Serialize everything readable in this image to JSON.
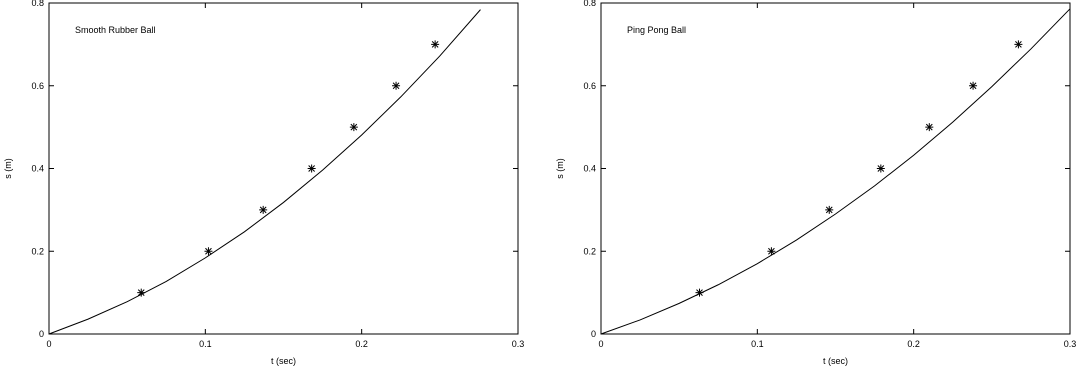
{
  "chart_data": [
    {
      "type": "scatter",
      "title": "Smooth Rubber Ball",
      "xlabel": "t (sec)",
      "ylabel": "s (m)",
      "xlim": [
        0,
        0.3
      ],
      "ylim": [
        0,
        0.8
      ],
      "xticks": [
        "0",
        "0.1",
        "0.2",
        "0.3"
      ],
      "yticks": [
        "0",
        "0.2",
        "0.4",
        "0.6",
        "0.8"
      ],
      "grid": false,
      "legend": "none",
      "points": {
        "x": [
          0.059,
          0.102,
          0.137,
          0.168,
          0.195,
          0.222,
          0.247
        ],
        "y": [
          0.1,
          0.2,
          0.3,
          0.4,
          0.5,
          0.6,
          0.7
        ]
      },
      "fit_curve": {
        "x": [
          0,
          0.025,
          0.05,
          0.075,
          0.1,
          0.125,
          0.15,
          0.175,
          0.2,
          0.225,
          0.25,
          0.276
        ],
        "y": [
          0,
          0.036,
          0.078,
          0.127,
          0.184,
          0.247,
          0.318,
          0.396,
          0.481,
          0.573,
          0.672,
          0.784
        ]
      }
    },
    {
      "type": "scatter",
      "title": "Ping Pong Ball",
      "xlabel": "t (sec)",
      "ylabel": "s (m)",
      "xlim": [
        0,
        0.3
      ],
      "ylim": [
        0,
        0.8
      ],
      "xticks": [
        "0",
        "0.1",
        "0.2",
        "0.3"
      ],
      "yticks": [
        "0",
        "0.2",
        "0.4",
        "0.6",
        "0.8"
      ],
      "grid": false,
      "legend": "none",
      "points": {
        "x": [
          0.063,
          0.109,
          0.146,
          0.179,
          0.21,
          0.238,
          0.267
        ],
        "y": [
          0.1,
          0.2,
          0.3,
          0.4,
          0.5,
          0.6,
          0.7
        ]
      },
      "fit_curve": {
        "x": [
          0,
          0.025,
          0.05,
          0.075,
          0.1,
          0.125,
          0.15,
          0.175,
          0.2,
          0.225,
          0.25,
          0.275,
          0.3
        ],
        "y": [
          0,
          0.034,
          0.074,
          0.119,
          0.17,
          0.227,
          0.29,
          0.358,
          0.432,
          0.512,
          0.598,
          0.689,
          0.786
        ]
      }
    }
  ]
}
